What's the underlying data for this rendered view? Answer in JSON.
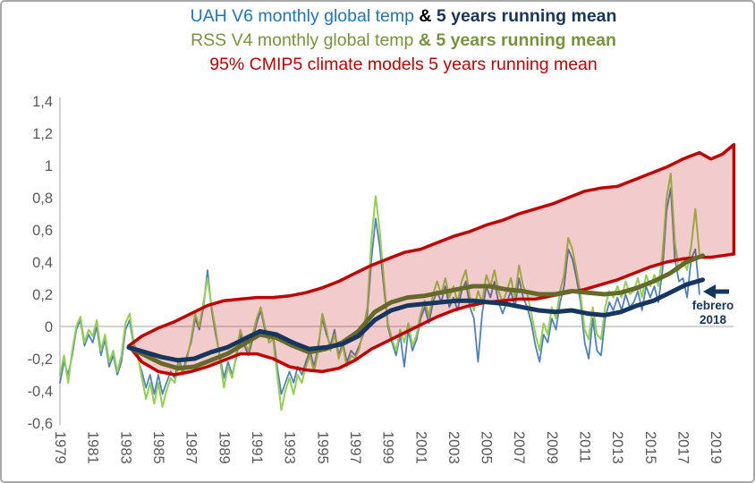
{
  "title": {
    "line1": {
      "part1": "UAH V6 monthly global temp",
      "part2": " & ",
      "part3": " 5 years running mean",
      "color1": "#1b75bc",
      "color2": "#000000",
      "color3": "#17365d"
    },
    "line2": {
      "part1": "RSS V4 monthly global temp ",
      "part2": "& 5 years running mean",
      "color": "#77933c"
    },
    "line3": {
      "text": "95% CMIP5 climate models 5 years running mean",
      "color": "#c00000"
    }
  },
  "annotation": {
    "line1": "febrero",
    "line2": "2018",
    "color": "#17365d"
  },
  "axes": {
    "label_color": "#595959",
    "axis_color": "#c3c3c3",
    "zero_gridline": true,
    "y_ticks": [
      {
        "label": "1,4",
        "value": 1.4
      },
      {
        "label": "1,2",
        "value": 1.2
      },
      {
        "label": "1",
        "value": 1.0
      },
      {
        "label": "0,8",
        "value": 0.8
      },
      {
        "label": "0,6",
        "value": 0.6
      },
      {
        "label": "0,4",
        "value": 0.4
      },
      {
        "label": "0,2",
        "value": 0.2
      },
      {
        "label": "0",
        "value": 0.0
      },
      {
        "label": "-0,2",
        "value": -0.2
      },
      {
        "label": "-0,4",
        "value": -0.4
      },
      {
        "label": "-0,6",
        "value": -0.6
      }
    ],
    "x_ticks": [
      {
        "label": "1979",
        "value": 1979
      },
      {
        "label": "1981",
        "value": 1981
      },
      {
        "label": "1983",
        "value": 1983
      },
      {
        "label": "1985",
        "value": 1985
      },
      {
        "label": "1987",
        "value": 1987
      },
      {
        "label": "1989",
        "value": 1989
      },
      {
        "label": "1991",
        "value": 1991
      },
      {
        "label": "1993",
        "value": 1993
      },
      {
        "label": "1995",
        "value": 1995
      },
      {
        "label": "1997",
        "value": 1997
      },
      {
        "label": "1999",
        "value": 1999
      },
      {
        "label": "2001",
        "value": 2001
      },
      {
        "label": "2003",
        "value": 2003
      },
      {
        "label": "2005",
        "value": 2005
      },
      {
        "label": "2007",
        "value": 2007
      },
      {
        "label": "2009",
        "value": 2009
      },
      {
        "label": "2011",
        "value": 2011
      },
      {
        "label": "2013",
        "value": 2013
      },
      {
        "label": "2015",
        "value": 2015
      },
      {
        "label": "2017",
        "value": 2017
      },
      {
        "label": "2019",
        "value": 2019
      }
    ]
  },
  "chart_data": {
    "type": "line",
    "title": "UAH V6 & RSS V4 monthly global temperature vs 95% CMIP5 climate models (5 years running means)",
    "xlabel": "",
    "ylabel": "",
    "x_range": [
      1979,
      2020.3
    ],
    "y_range": [
      -0.6,
      1.4
    ],
    "grid": "zero-line-only",
    "legend_position": "title-colored-text",
    "series": [
      {
        "id": "uah-monthly",
        "name": "UAH V6 monthly global temp",
        "color": "#4f81bd",
        "width": 1.8,
        "x_start": 1979,
        "x_step": 0.25,
        "values": [
          -0.35,
          -0.22,
          -0.3,
          -0.18,
          -0.02,
          0.04,
          -0.12,
          -0.05,
          -0.1,
          0.0,
          -0.18,
          -0.08,
          -0.25,
          -0.18,
          -0.3,
          -0.22,
          -0.02,
          0.04,
          -0.12,
          -0.2,
          -0.28,
          -0.38,
          -0.3,
          -0.42,
          -0.3,
          -0.42,
          -0.35,
          -0.28,
          -0.32,
          -0.2,
          -0.28,
          -0.18,
          -0.1,
          0.05,
          -0.02,
          0.12,
          0.35,
          0.1,
          -0.05,
          -0.18,
          -0.32,
          -0.22,
          -0.3,
          -0.2,
          -0.05,
          -0.12,
          -0.18,
          -0.08,
          0.02,
          0.1,
          -0.02,
          -0.08,
          -0.05,
          -0.25,
          -0.42,
          -0.35,
          -0.28,
          -0.35,
          -0.25,
          -0.3,
          -0.22,
          -0.15,
          -0.25,
          -0.12,
          0.05,
          -0.05,
          -0.12,
          -0.02,
          -0.18,
          -0.1,
          -0.22,
          -0.15,
          -0.18,
          -0.12,
          -0.05,
          0.08,
          0.42,
          0.67,
          0.5,
          0.25,
          0.0,
          -0.1,
          -0.18,
          -0.05,
          -0.25,
          -0.02,
          -0.15,
          -0.08,
          0.05,
          0.12,
          0.02,
          0.15,
          0.22,
          0.15,
          0.25,
          0.12,
          0.18,
          0.1,
          0.22,
          0.28,
          0.12,
          0.05,
          -0.22,
          0.08,
          0.25,
          0.18,
          0.28,
          0.15,
          0.08,
          0.15,
          0.22,
          0.12,
          0.3,
          0.18,
          0.12,
          0.02,
          -0.12,
          -0.22,
          -0.05,
          -0.1,
          0.05,
          -0.02,
          0.15,
          0.25,
          0.48,
          0.42,
          0.3,
          0.15,
          -0.1,
          -0.2,
          0.05,
          -0.15,
          -0.18,
          0.05,
          0.15,
          0.1,
          0.18,
          0.1,
          0.2,
          0.12,
          0.15,
          0.22,
          0.1,
          0.25,
          0.18,
          0.25,
          0.15,
          0.35,
          0.72,
          0.86,
          0.42,
          0.28,
          0.3,
          0.18,
          0.42,
          0.48,
          0.2
        ]
      },
      {
        "id": "rss-monthly",
        "name": "RSS V4 monthly global temp",
        "color": "#92d050",
        "width": 2,
        "x_start": 1979,
        "x_step": 0.25,
        "values": [
          -0.3,
          -0.18,
          -0.35,
          -0.15,
          0.0,
          0.06,
          -0.1,
          -0.02,
          -0.06,
          0.04,
          -0.15,
          -0.05,
          -0.22,
          -0.15,
          -0.28,
          -0.18,
          0.02,
          0.08,
          -0.1,
          -0.18,
          -0.32,
          -0.45,
          -0.35,
          -0.48,
          -0.35,
          -0.5,
          -0.4,
          -0.32,
          -0.35,
          -0.22,
          -0.3,
          -0.2,
          -0.08,
          0.08,
          0.0,
          0.15,
          0.3,
          0.12,
          -0.02,
          -0.2,
          -0.38,
          -0.25,
          -0.32,
          -0.18,
          -0.02,
          -0.1,
          -0.15,
          -0.05,
          0.05,
          0.12,
          0.0,
          -0.1,
          -0.08,
          -0.3,
          -0.52,
          -0.4,
          -0.32,
          -0.42,
          -0.3,
          -0.35,
          -0.25,
          -0.18,
          -0.28,
          -0.15,
          0.08,
          -0.02,
          -0.15,
          -0.05,
          -0.2,
          -0.12,
          -0.25,
          -0.18,
          -0.2,
          -0.14,
          -0.02,
          0.12,
          0.55,
          0.81,
          0.6,
          0.3,
          0.02,
          -0.08,
          -0.15,
          -0.02,
          -0.1,
          0.02,
          -0.12,
          -0.05,
          0.08,
          0.16,
          0.06,
          0.2,
          0.28,
          0.2,
          0.3,
          0.18,
          0.25,
          0.15,
          0.28,
          0.35,
          0.18,
          0.1,
          0.22,
          0.15,
          0.32,
          0.25,
          0.35,
          0.22,
          0.15,
          0.22,
          0.3,
          0.18,
          0.38,
          0.25,
          0.2,
          0.08,
          -0.05,
          -0.15,
          0.02,
          -0.05,
          0.12,
          0.05,
          0.22,
          0.32,
          0.55,
          0.48,
          0.35,
          0.2,
          -0.02,
          -0.08,
          0.12,
          -0.05,
          -0.08,
          0.12,
          0.22,
          0.18,
          0.25,
          0.18,
          0.28,
          0.2,
          0.22,
          0.3,
          0.18,
          0.32,
          0.25,
          0.32,
          0.25,
          0.45,
          0.8,
          0.95,
          0.52,
          0.35,
          0.42,
          0.35,
          0.5,
          0.73,
          0.45
        ]
      },
      {
        "id": "rss-5yr-mean",
        "name": "RSS V4 5 years running mean",
        "color": "#656a2a",
        "width": 5,
        "x_start": 1983.2,
        "x_step": 1,
        "values": [
          -0.13,
          -0.18,
          -0.23,
          -0.26,
          -0.25,
          -0.21,
          -0.17,
          -0.11,
          -0.05,
          -0.07,
          -0.12,
          -0.16,
          -0.14,
          -0.1,
          -0.03,
          0.09,
          0.15,
          0.18,
          0.19,
          0.21,
          0.23,
          0.25,
          0.25,
          0.23,
          0.22,
          0.2,
          0.2,
          0.22,
          0.21,
          0.2,
          0.21,
          0.24,
          0.28,
          0.33,
          0.4,
          0.44
        ]
      },
      {
        "id": "uah-5yr-mean",
        "name": "UAH V6 5 years running mean",
        "color": "#17365d",
        "width": 5,
        "x_start": 1983.2,
        "x_step": 1,
        "values": [
          -0.13,
          -0.16,
          -0.19,
          -0.21,
          -0.2,
          -0.16,
          -0.13,
          -0.08,
          -0.03,
          -0.05,
          -0.1,
          -0.14,
          -0.13,
          -0.11,
          -0.06,
          0.04,
          0.1,
          0.13,
          0.14,
          0.15,
          0.16,
          0.16,
          0.15,
          0.14,
          0.12,
          0.1,
          0.09,
          0.1,
          0.08,
          0.07,
          0.09,
          0.13,
          0.16,
          0.21,
          0.26,
          0.29
        ]
      }
    ],
    "band": {
      "id": "cmip5-95pct-band",
      "name": "95% CMIP5 climate models 5 years running mean",
      "edge_color": "#c00000",
      "edge_width": 3.5,
      "fill_color": "rgba(192,0,0,0.2)",
      "x": [
        1983.2,
        1984,
        1985,
        1986,
        1987,
        1988,
        1989,
        1990,
        1991,
        1992,
        1993,
        1994,
        1995,
        1996,
        1997,
        1998,
        1999,
        2000,
        2001,
        2002,
        2003,
        2004,
        2005,
        2006,
        2007,
        2008,
        2009,
        2010,
        2011,
        2012,
        2013,
        2014,
        2015,
        2016,
        2017,
        2018,
        2018.7,
        2019.4,
        2020.1
      ],
      "upper": [
        -0.12,
        -0.06,
        -0.01,
        0.03,
        0.08,
        0.13,
        0.16,
        0.17,
        0.18,
        0.18,
        0.19,
        0.21,
        0.24,
        0.28,
        0.33,
        0.38,
        0.42,
        0.46,
        0.48,
        0.52,
        0.56,
        0.59,
        0.63,
        0.66,
        0.7,
        0.73,
        0.76,
        0.8,
        0.84,
        0.86,
        0.87,
        0.91,
        0.95,
        0.99,
        1.04,
        1.08,
        1.04,
        1.07,
        1.13
      ],
      "lower": [
        -0.12,
        -0.22,
        -0.28,
        -0.3,
        -0.28,
        -0.25,
        -0.21,
        -0.17,
        -0.17,
        -0.2,
        -0.25,
        -0.27,
        -0.28,
        -0.26,
        -0.21,
        -0.14,
        -0.09,
        -0.04,
        0.01,
        0.06,
        0.1,
        0.13,
        0.15,
        0.16,
        0.17,
        0.17,
        0.19,
        0.21,
        0.23,
        0.26,
        0.29,
        0.33,
        0.37,
        0.4,
        0.42,
        0.43,
        0.43,
        0.44,
        0.45
      ]
    }
  }
}
